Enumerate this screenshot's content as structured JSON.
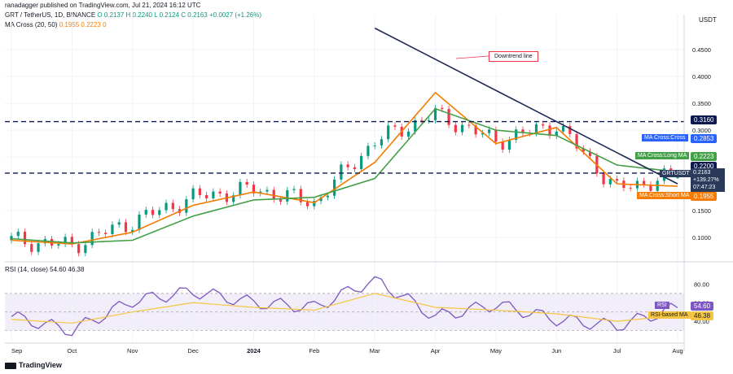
{
  "header": {
    "author_line": "ranadagger published on TradingView.com, Jul 21, 2024 16:12 UTC",
    "symbol": "GRT / TetherUS, 1D, BINANCE",
    "ohlc": "O 0.2137  H 0.2240  L 0.2124  C 0.2163  +0.0027 (+1.26%)",
    "indicator": "MA Cross (20, 50)",
    "ma_values": "0.1955  0.2223  0"
  },
  "price_axis": {
    "currency": "USDT",
    "ticks": [
      "0.4500",
      "0.4000",
      "0.3500",
      "0.3000",
      "0.2500",
      "0.1500",
      "0.1000"
    ]
  },
  "rsi_axis": {
    "ticks": [
      "80.00",
      "60.00",
      "40.00"
    ]
  },
  "time_axis": {
    "ticks": [
      "Sep",
      "Oct",
      "Nov",
      "Dec",
      "2024",
      "Feb",
      "Mar",
      "Apr",
      "May",
      "Jun",
      "Jul",
      "Aug"
    ]
  },
  "annotations": {
    "downtrend": "Downtrend line"
  },
  "tags": {
    "level_high": {
      "value": "0.3160",
      "bg": "#0e1a4d"
    },
    "ma_cross_cross": {
      "label": "MA Cross:Cross",
      "value": "0.2853",
      "bg": "#2962ff"
    },
    "ma_long": {
      "label": "MA Cross:Long MA",
      "value": "0.2223",
      "bg": "#43a047"
    },
    "level_low": {
      "value": "0.2200",
      "bg": "#0e1a4d"
    },
    "symbol_tag": {
      "label": "GRTUSDT",
      "value": "0.2163",
      "extra1": "+139.27%",
      "extra2": "07:47:23",
      "bg": "#2a3a5a"
    },
    "ma_short": {
      "label": "MA Cross:Short MA",
      "value": "0.1955",
      "bg": "#f57c00"
    },
    "rsi": {
      "label": "RSI",
      "value": "54.60",
      "bg": "#7e57c2"
    },
    "rsi_ma": {
      "label": "RSI-based MA",
      "value": "46.38",
      "bg": "#f5c542"
    }
  },
  "rsi_title": "RSI (14, close)  54.60  46.38",
  "brand": "TradingView",
  "colors": {
    "up": "#089981",
    "down": "#f23645",
    "long_ma": "#43a047",
    "short_ma": "#f57c00",
    "rsi": "#7e57c2",
    "rsi_ma": "#f5c542",
    "level": "#0e1a4d",
    "trend": "#1f2a55"
  },
  "chart_data": {
    "type": "line",
    "title": "GRT / TetherUS, 1D, BINANCE",
    "ylabel": "USDT",
    "ylim": [
      0.07,
      0.5
    ],
    "x": [
      "Sep",
      "Oct",
      "Nov",
      "Dec",
      "2024",
      "Feb",
      "Mar",
      "Apr",
      "May",
      "Jun",
      "Jul",
      "Aug"
    ],
    "series": [
      {
        "name": "GRTUSDT",
        "values": [
          0.095,
          0.085,
          0.13,
          0.175,
          0.19,
          0.165,
          0.28,
          0.33,
          0.28,
          0.31,
          0.19,
          0.2163
        ]
      },
      {
        "name": "MA Cross:Short MA",
        "values": [
          0.095,
          0.088,
          0.11,
          0.16,
          0.185,
          0.165,
          0.24,
          0.37,
          0.275,
          0.305,
          0.2,
          0.1955
        ]
      },
      {
        "name": "MA Cross:Long MA",
        "values": [
          0.098,
          0.09,
          0.095,
          0.14,
          0.17,
          0.175,
          0.21,
          0.34,
          0.3,
          0.29,
          0.235,
          0.2223
        ]
      }
    ],
    "horizontal_levels": [
      0.316,
      0.22
    ],
    "trendline": {
      "from": [
        "Mar",
        0.49
      ],
      "to": [
        "Aug",
        0.2
      ]
    },
    "rsi": {
      "name": "RSI",
      "ylim": [
        20,
        90
      ],
      "values": [
        45,
        30,
        62,
        72,
        60,
        55,
        85,
        45,
        58,
        42,
        35,
        54.6
      ],
      "ma_values": [
        42,
        38,
        50,
        60,
        55,
        52,
        70,
        55,
        52,
        48,
        40,
        46.38
      ],
      "bands": [
        30,
        50,
        70
      ]
    }
  }
}
